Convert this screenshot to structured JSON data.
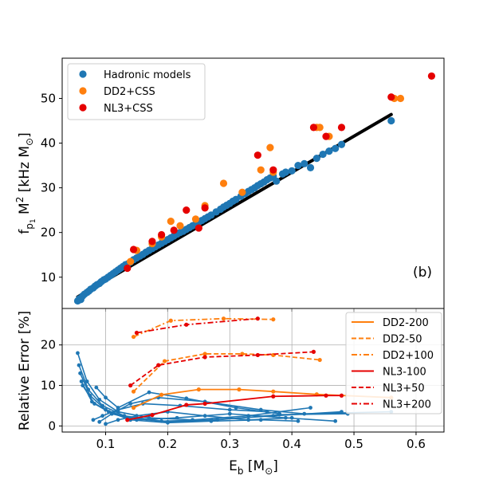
{
  "chart_data": [
    {
      "type": "scatter",
      "panel_label": "(b)",
      "ylabel_main": "f",
      "ylabel_sub": "p",
      "ylabel_subsub": "1",
      "ylabel_mid": " M",
      "ylabel_sup": "2",
      "ylabel_tail": " [kHz M",
      "ylabel_tail_sub": "⊙",
      "ylabel_end": "]",
      "xlim": [
        0.03,
        0.645
      ],
      "ylim": [
        3.0,
        59.0
      ],
      "yticks": [
        10,
        20,
        30,
        40,
        50
      ],
      "grid": false,
      "legend_position": "top-left",
      "fit_line": {
        "x": [
          0.055,
          0.56
        ],
        "y": [
          5.6,
          46.4
        ],
        "color": "#000000"
      },
      "series": [
        {
          "name": "Hadronic models",
          "color": "#1f77b4",
          "x": [
            0.055,
            0.058,
            0.06,
            0.063,
            0.066,
            0.07,
            0.073,
            0.076,
            0.08,
            0.083,
            0.086,
            0.09,
            0.093,
            0.097,
            0.1,
            0.104,
            0.108,
            0.112,
            0.116,
            0.12,
            0.124,
            0.128,
            0.132,
            0.136,
            0.14,
            0.145,
            0.15,
            0.155,
            0.16,
            0.165,
            0.17,
            0.175,
            0.18,
            0.185,
            0.19,
            0.195,
            0.2,
            0.205,
            0.21,
            0.215,
            0.22,
            0.225,
            0.23,
            0.235,
            0.24,
            0.245,
            0.25,
            0.255,
            0.26,
            0.265,
            0.27,
            0.278,
            0.285,
            0.29,
            0.295,
            0.3,
            0.305,
            0.31,
            0.318,
            0.325,
            0.33,
            0.335,
            0.34,
            0.345,
            0.35,
            0.355,
            0.36,
            0.365,
            0.37,
            0.375,
            0.385,
            0.39,
            0.4,
            0.41,
            0.42,
            0.43,
            0.44,
            0.45,
            0.46,
            0.47,
            0.48,
            0.56
          ],
          "y": [
            4.7,
            5.2,
            5.0,
            5.8,
            6.2,
            6.6,
            6.9,
            7.3,
            7.6,
            8.0,
            8.3,
            8.6,
            9.0,
            9.4,
            9.6,
            10.0,
            10.4,
            10.8,
            11.2,
            11.6,
            12.0,
            12.4,
            12.8,
            13.0,
            13.4,
            13.9,
            14.3,
            14.7,
            15.1,
            15.6,
            16.0,
            16.4,
            16.8,
            17.2,
            17.6,
            18.0,
            18.4,
            18.8,
            19.2,
            19.6,
            20.0,
            20.3,
            20.7,
            21.1,
            21.5,
            21.9,
            22.3,
            22.7,
            23.1,
            23.5,
            23.9,
            24.6,
            25.2,
            25.7,
            26.1,
            26.5,
            27.0,
            27.4,
            28.1,
            28.7,
            29.2,
            29.6,
            30.0,
            30.5,
            30.9,
            31.3,
            31.8,
            32.2,
            32.6,
            31.5,
            33.1,
            33.5,
            33.8,
            35.0,
            35.4,
            34.5,
            36.6,
            37.5,
            38.2,
            38.8,
            39.7,
            45.0
          ]
        },
        {
          "name": "DD2+CSS",
          "color": "#ff7f0e",
          "x": [
            0.14,
            0.15,
            0.175,
            0.19,
            0.205,
            0.22,
            0.245,
            0.26,
            0.29,
            0.32,
            0.35,
            0.365,
            0.37,
            0.44,
            0.445,
            0.46,
            0.565,
            0.575
          ],
          "y": [
            13.5,
            16.0,
            17.5,
            19.0,
            22.5,
            21.5,
            23.0,
            26.0,
            31.0,
            29.0,
            34.0,
            39.0,
            33.5,
            43.5,
            43.5,
            41.5,
            50.0,
            50.0
          ]
        },
        {
          "name": "NL3+CSS",
          "color": "#e50000",
          "x": [
            0.135,
            0.145,
            0.175,
            0.19,
            0.21,
            0.23,
            0.25,
            0.26,
            0.345,
            0.37,
            0.435,
            0.455,
            0.48,
            0.56,
            0.625
          ],
          "y": [
            12.0,
            16.2,
            18.0,
            19.5,
            20.5,
            25.0,
            21.0,
            25.5,
            37.3,
            34.0,
            43.5,
            41.5,
            43.5,
            50.3,
            55.0
          ]
        }
      ]
    },
    {
      "type": "line",
      "xlabel": "E",
      "xlabel_sub": "b",
      "xlabel_tail": " [M",
      "xlabel_tail_sub": "⊙",
      "xlabel_end": "]",
      "ylabel": "Relative Error [%]",
      "xlim": [
        0.03,
        0.645
      ],
      "ylim": [
        -1.5,
        29.0
      ],
      "xticks": [
        0.1,
        0.2,
        0.3,
        0.4,
        0.5,
        0.6
      ],
      "xtick_labels": [
        "0.1",
        "0.2",
        "0.3",
        "0.4",
        "0.5",
        "0.6"
      ],
      "yticks": [
        0,
        10,
        20
      ],
      "grid": true,
      "legend_position": "top-right",
      "series": [
        {
          "name": "DD2-200",
          "color": "#ff7f0e",
          "style": "solid",
          "legend": true,
          "x": [
            0.145,
            0.19,
            0.25,
            0.315,
            0.37,
            0.44,
            0.56
          ],
          "y": [
            4.5,
            7.7,
            9.0,
            9.0,
            8.5,
            7.8,
            7.0
          ]
        },
        {
          "name": "DD2-50",
          "color": "#ff7f0e",
          "style": "dashed",
          "legend": true,
          "x": [
            0.145,
            0.195,
            0.26,
            0.32,
            0.37,
            0.445
          ],
          "y": [
            8.5,
            16.0,
            17.8,
            17.8,
            17.5,
            16.3
          ]
        },
        {
          "name": "DD2+100",
          "color": "#ff7f0e",
          "style": "dashdot",
          "legend": true,
          "x": [
            0.145,
            0.205,
            0.29,
            0.37
          ],
          "y": [
            22.0,
            26.0,
            26.5,
            26.3
          ]
        },
        {
          "name": "NL3-100",
          "color": "#e50000",
          "style": "solid",
          "legend": true,
          "x": [
            0.135,
            0.175,
            0.23,
            0.26,
            0.37,
            0.455,
            0.48
          ],
          "y": [
            1.5,
            2.7,
            5.2,
            5.5,
            7.3,
            7.5,
            7.5
          ]
        },
        {
          "name": "NL3+50",
          "color": "#e50000",
          "style": "dashed",
          "legend": true,
          "x": [
            0.14,
            0.185,
            0.26,
            0.345,
            0.435
          ],
          "y": [
            10.0,
            15.0,
            17.0,
            17.5,
            18.3
          ]
        },
        {
          "name": "NL3+200",
          "color": "#e50000",
          "style": "dashdot",
          "legend": true,
          "x": [
            0.15,
            0.23,
            0.345
          ],
          "y": [
            23.0,
            25.0,
            26.5
          ]
        },
        {
          "name": "Hadronic 1",
          "color": "#1f77b4",
          "style": "solid",
          "legend": false,
          "markers": true,
          "x": [
            0.055,
            0.07,
            0.09,
            0.12,
            0.17,
            0.24,
            0.33,
            0.43
          ],
          "y": [
            18.0,
            11.0,
            6.5,
            3.5,
            2.0,
            1.5,
            2.5,
            4.5
          ]
        },
        {
          "name": "Hadronic 2",
          "color": "#1f77b4",
          "style": "solid",
          "legend": false,
          "markers": true,
          "x": [
            0.057,
            0.072,
            0.095,
            0.13,
            0.19,
            0.27,
            0.37,
            0.48
          ],
          "y": [
            15.0,
            9.0,
            5.0,
            2.5,
            1.2,
            1.5,
            2.5,
            3.5
          ]
        },
        {
          "name": "Hadronic 3",
          "color": "#1f77b4",
          "style": "solid",
          "legend": false,
          "markers": true,
          "x": [
            0.059,
            0.075,
            0.1,
            0.135,
            0.2,
            0.28,
            0.38,
            0.49
          ],
          "y": [
            13.0,
            7.5,
            4.0,
            2.0,
            1.0,
            1.5,
            2.8,
            3.0
          ]
        },
        {
          "name": "Hadronic 4",
          "color": "#1f77b4",
          "style": "solid",
          "legend": false,
          "markers": true,
          "x": [
            0.061,
            0.078,
            0.105,
            0.14,
            0.2,
            0.27,
            0.35,
            0.41
          ],
          "y": [
            11.0,
            6.0,
            3.5,
            1.5,
            0.8,
            1.2,
            1.5,
            1.2
          ]
        },
        {
          "name": "Hadronic 5",
          "color": "#1f77b4",
          "style": "solid",
          "legend": false,
          "markers": true,
          "x": [
            0.063,
            0.082,
            0.11,
            0.15,
            0.215,
            0.3,
            0.39,
            0.47
          ],
          "y": [
            10.0,
            5.5,
            3.0,
            1.5,
            2.0,
            3.0,
            2.0,
            1.2
          ]
        },
        {
          "name": "Hadronic 6",
          "color": "#1f77b4",
          "style": "solid",
          "legend": false,
          "markers": true,
          "x": [
            0.08,
            0.095,
            0.12,
            0.16,
            0.22,
            0.3,
            0.36
          ],
          "y": [
            1.5,
            2.5,
            4.0,
            5.5,
            5.0,
            4.0,
            3.5
          ]
        },
        {
          "name": "Hadronic 7",
          "color": "#1f77b4",
          "style": "solid",
          "legend": false,
          "markers": true,
          "x": [
            0.09,
            0.11,
            0.14,
            0.185,
            0.26,
            0.35,
            0.42,
            0.56
          ],
          "y": [
            1.0,
            3.0,
            5.5,
            7.0,
            6.0,
            4.0,
            3.0,
            3.5
          ]
        },
        {
          "name": "Hadronic 8",
          "color": "#1f77b4",
          "style": "solid",
          "legend": false,
          "markers": true,
          "x": [
            0.085,
            0.1,
            0.12,
            0.17,
            0.23,
            0.31,
            0.38
          ],
          "y": [
            9.5,
            7.0,
            4.5,
            8.3,
            6.8,
            4.5,
            3.0
          ]
        },
        {
          "name": "Hadronic 9",
          "color": "#1f77b4",
          "style": "solid",
          "legend": false,
          "markers": true,
          "x": [
            0.1,
            0.12,
            0.15,
            0.2,
            0.26,
            0.33,
            0.4
          ],
          "y": [
            0.5,
            1.5,
            2.5,
            3.5,
            2.5,
            1.5,
            2.0
          ]
        }
      ]
    }
  ]
}
